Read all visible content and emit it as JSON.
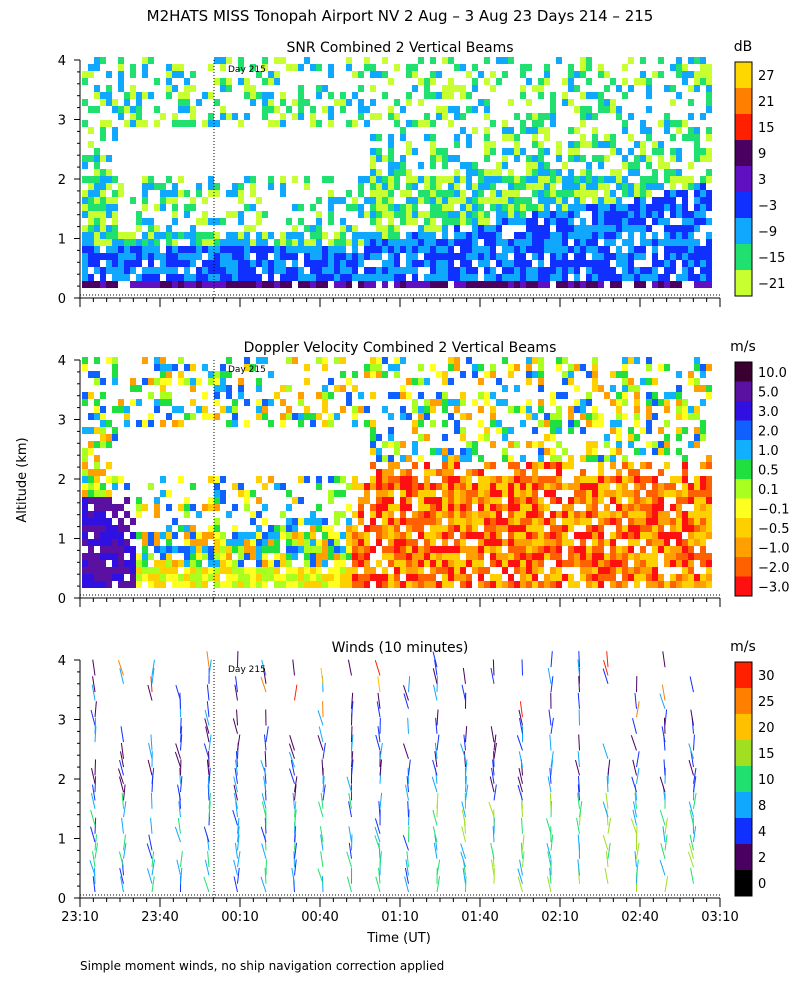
{
  "figure_title": "M2HATS MISS Tonopah Airport NV   2 Aug –  3 Aug 23 Days 214 – 215",
  "y_axis_label": "Altitude (km)",
  "x_axis_label": "Time (UT)",
  "footnote": "Simple moment winds, no ship navigation correction applied",
  "day_marker": "Day 215",
  "chart_data": [
    {
      "type": "heatmap",
      "title": "SNR Combined 2 Vertical Beams",
      "ylabel": "Altitude (km)",
      "yticks": [
        0,
        1,
        2,
        3,
        4
      ],
      "ylim": [
        0,
        4
      ],
      "colorbar": {
        "unit": "dB",
        "labels": [
          "27",
          "21",
          "15",
          "9",
          "3",
          "−3",
          "−9",
          "−15",
          "−21"
        ],
        "colors": [
          "#ffd700",
          "#ff8000",
          "#ff2000",
          "#4a0060",
          "#6010c0",
          "#1030ff",
          "#10a8ff",
          "#20e070",
          "#c8ff30"
        ]
      }
    },
    {
      "type": "heatmap",
      "title": "Doppler Velocity Combined 2 Vertical Beams",
      "ylabel": "Altitude (km)",
      "yticks": [
        0,
        1,
        2,
        3,
        4
      ],
      "ylim": [
        0,
        4
      ],
      "colorbar": {
        "unit": "m/s",
        "labels": [
          "10.0",
          "5.0",
          "3.0",
          "2.0",
          "1.0",
          "0.5",
          "0.1",
          "−0.1",
          "−0.5",
          "−1.0",
          "−2.0",
          "−3.0"
        ],
        "colors": [
          "#3a0030",
          "#5a10a0",
          "#3010e0",
          "#1060ff",
          "#10b0ff",
          "#20e040",
          "#a8ff20",
          "#ffff20",
          "#ffd000",
          "#ffa000",
          "#ff6000",
          "#ff1010"
        ]
      }
    },
    {
      "type": "scatter",
      "title": "Winds (10 minutes)",
      "ylabel": "Altitude (km)",
      "yticks": [
        0,
        1,
        2,
        3,
        4
      ],
      "ylim": [
        0,
        4
      ],
      "xticks": [
        "23:10",
        "23:40",
        "00:10",
        "00:40",
        "01:10",
        "01:40",
        "02:10",
        "02:40",
        "03:10"
      ],
      "colorbar": {
        "unit": "m/s",
        "labels": [
          "30",
          "25",
          "20",
          "15",
          "10",
          "8",
          "4",
          "2",
          "0"
        ],
        "colors": [
          "#ff2000",
          "#ff8000",
          "#ffc000",
          "#a0e020",
          "#20e070",
          "#10a8ff",
          "#1030ff",
          "#4a0060",
          "#000000"
        ]
      }
    }
  ]
}
